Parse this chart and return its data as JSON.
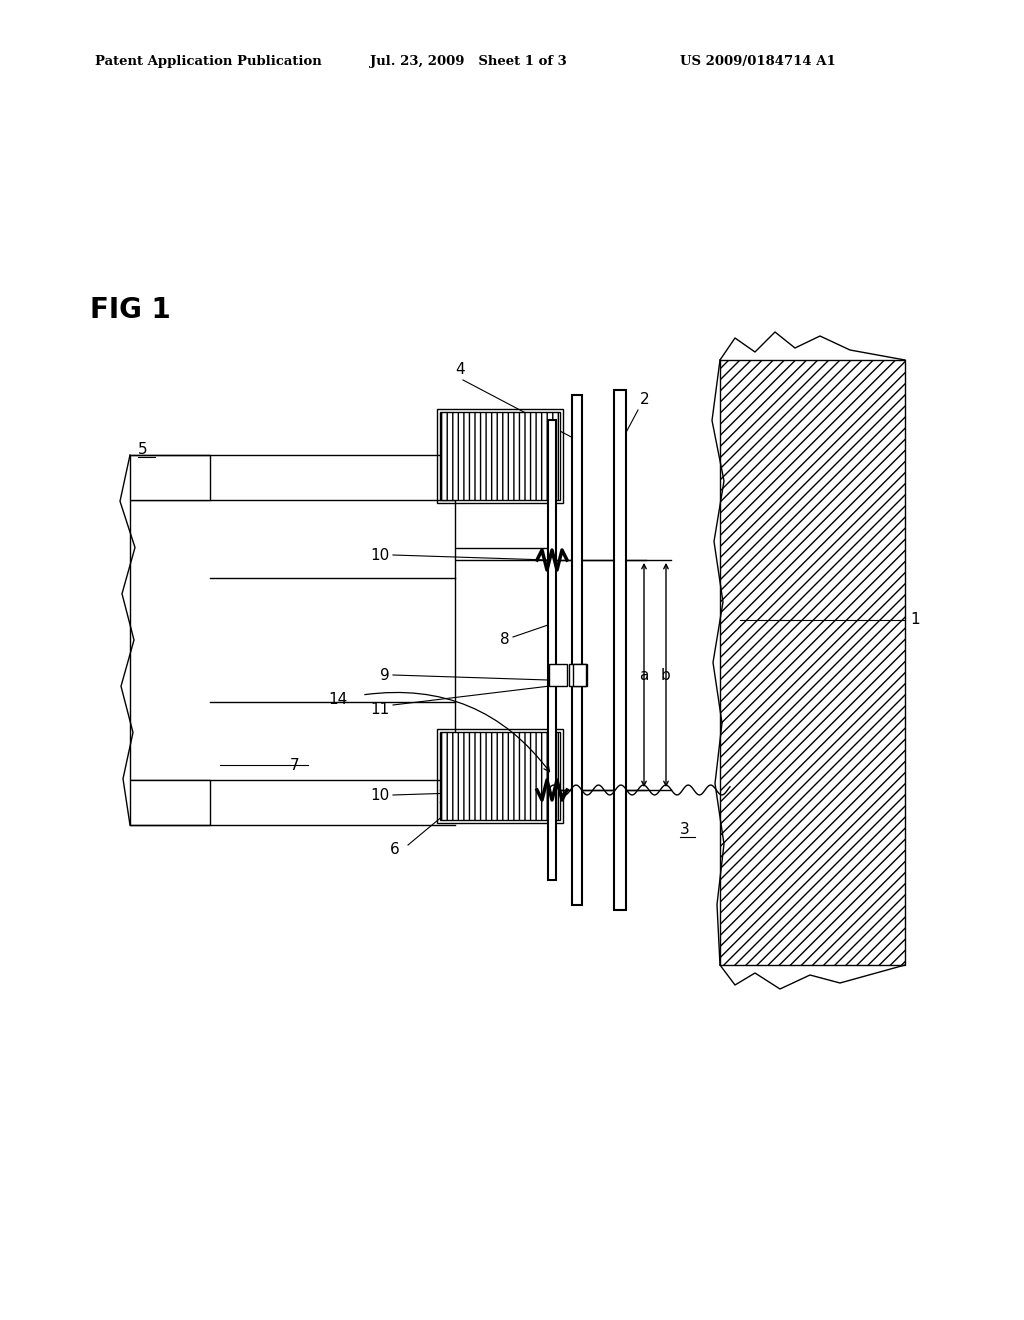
{
  "bg_color": "#ffffff",
  "line_color": "#000000",
  "header_left": "Patent Application Publication",
  "header_mid": "Jul. 23, 2009   Sheet 1 of 3",
  "header_right": "US 2009/0184714 A1",
  "fig_label": "FIG 1",
  "page_width": 10.24,
  "page_height": 13.2,
  "dpi": 100
}
